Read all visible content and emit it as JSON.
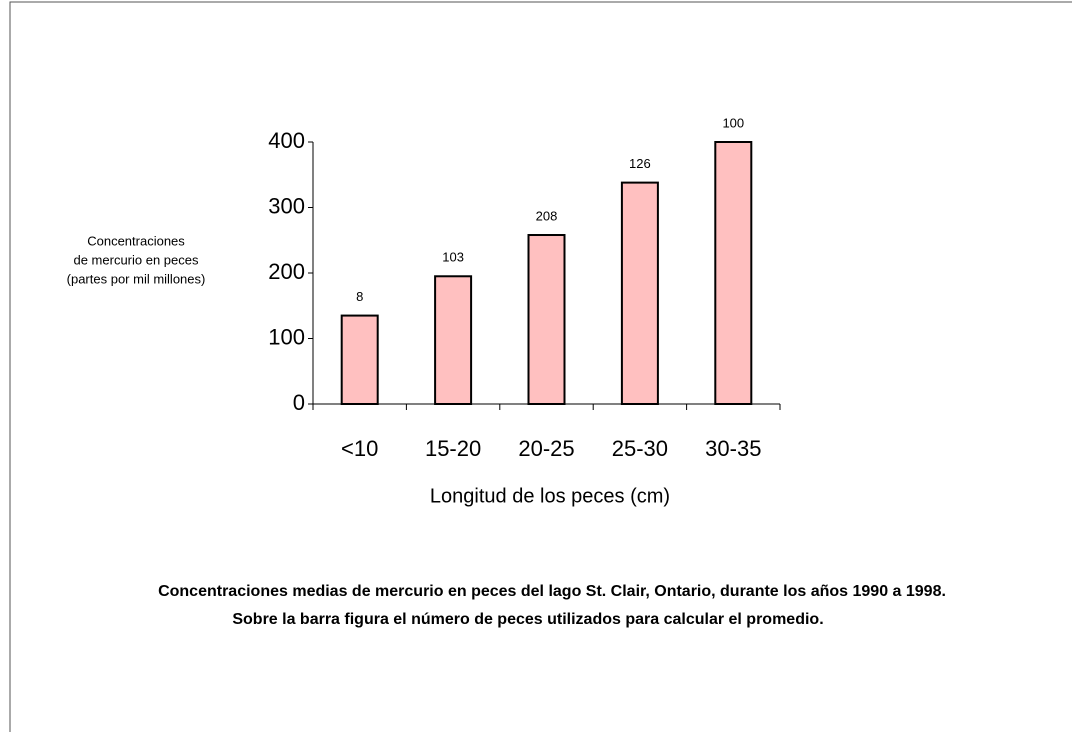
{
  "chart_data": {
    "type": "bar",
    "categories": [
      "<10",
      "15-20",
      "20-25",
      "25-30",
      "30-35"
    ],
    "values": [
      135,
      195,
      258,
      338,
      400
    ],
    "counts": [
      8,
      103,
      208,
      126,
      100
    ],
    "color": "#ffc0c0",
    "ylim": [
      0,
      400
    ],
    "yticks": [
      0,
      100,
      200,
      300,
      400
    ],
    "ylabel": [
      "Concentraciones",
      "de mercurio en peces",
      "(partes por mil millones)"
    ],
    "xlabel": "Longitud de los peces (cm)",
    "caption": [
      "Concentraciones medias de mercurio en peces del lago St. Clair, Ontario, durante los años 1990 a 1998.",
      "Sobre la barra figura el número de peces utilizados para calcular el promedio."
    ],
    "grid": false
  }
}
